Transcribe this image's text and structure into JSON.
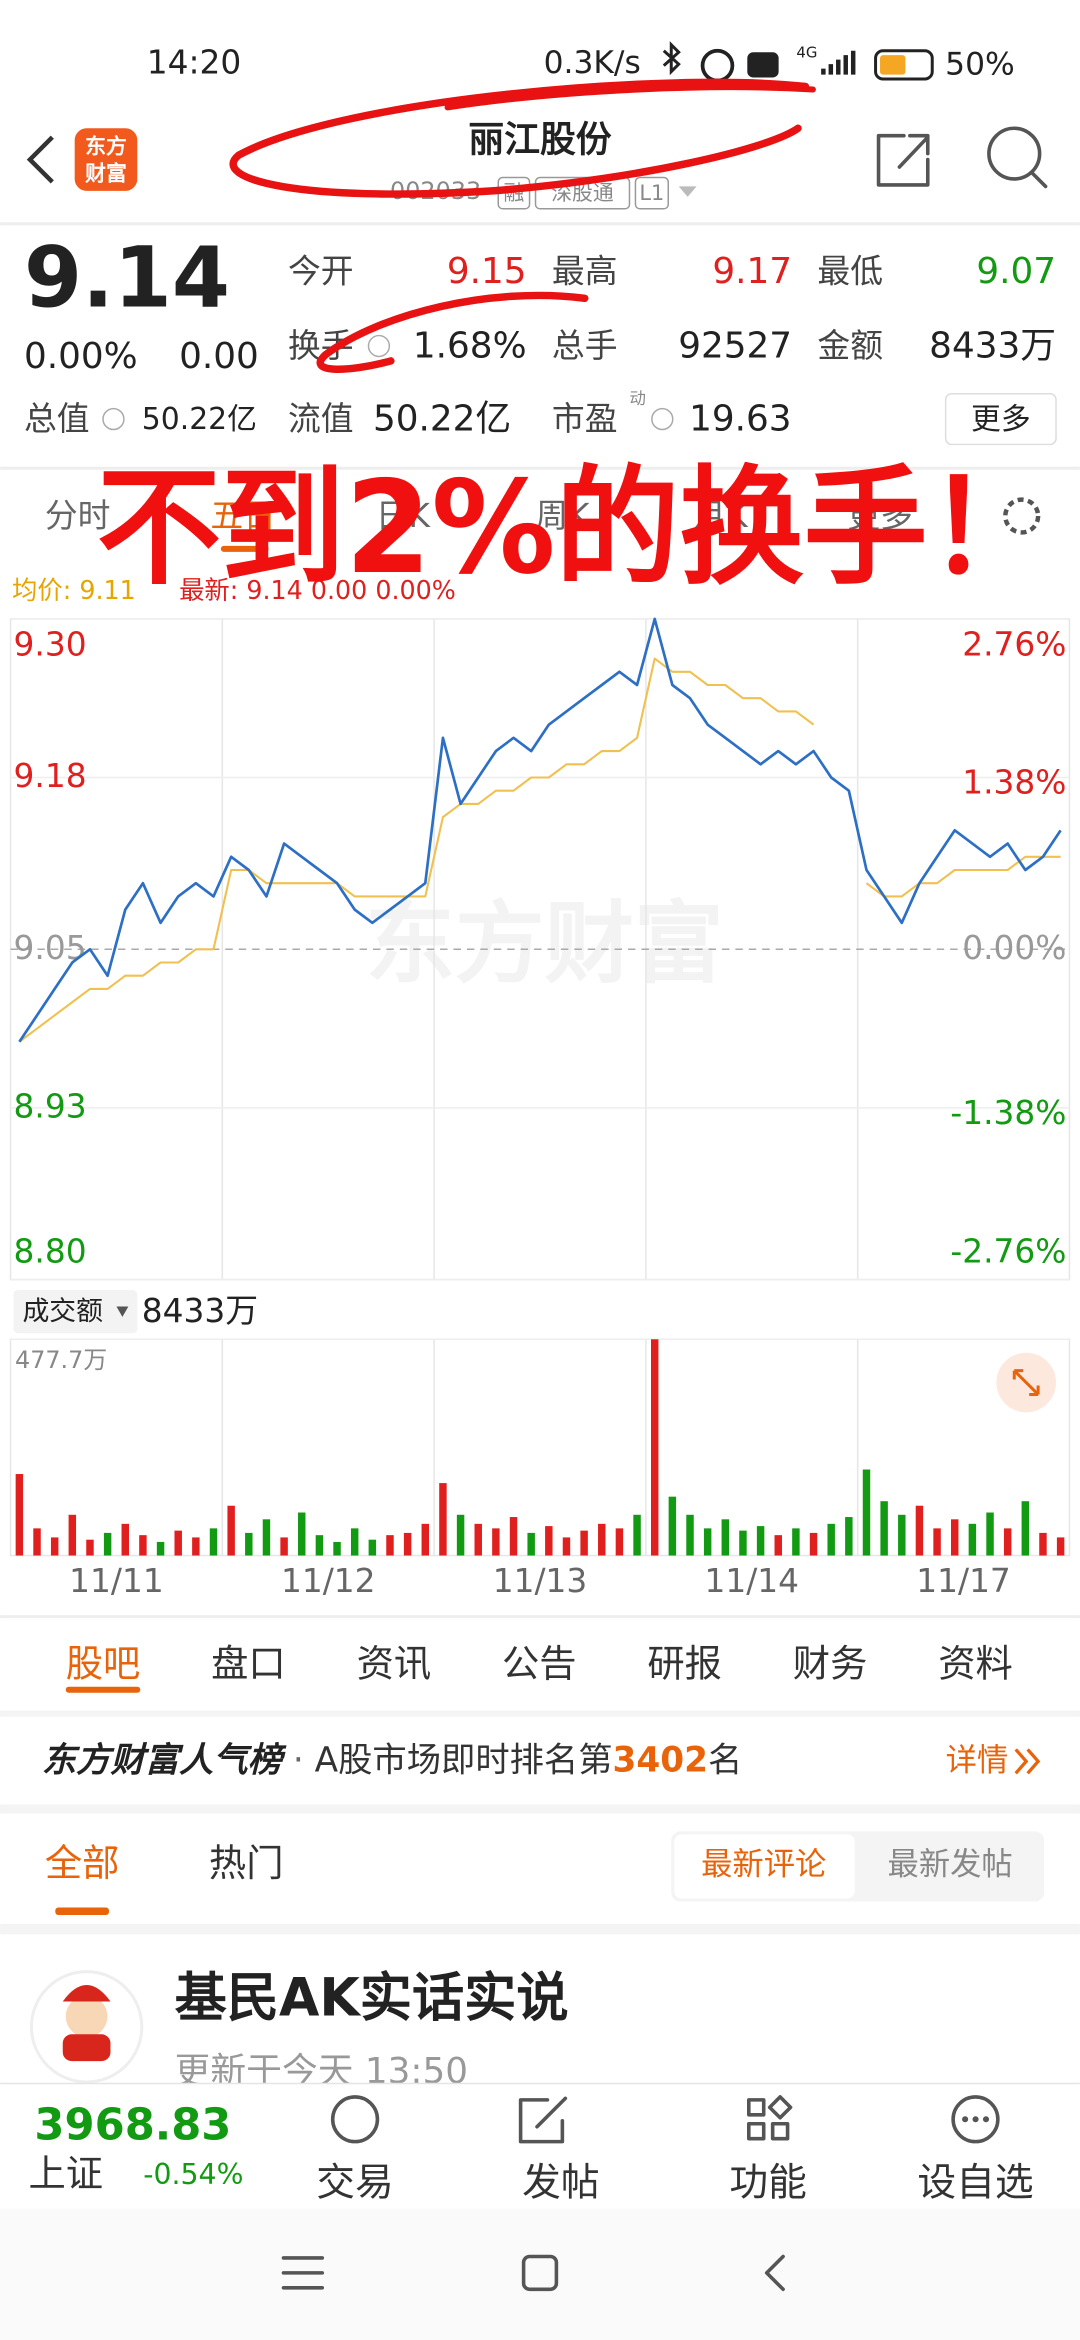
{
  "status_bar": {
    "time": "14:20",
    "network_speed": "0.3K/s",
    "signal": "4G",
    "battery": "50%"
  },
  "header": {
    "logo": [
      "东方",
      "财富"
    ],
    "title": "丽江股份",
    "code": "002033",
    "tags": [
      "融",
      "深股通",
      "L1"
    ]
  },
  "quote": {
    "price": "9.14",
    "change_pct": "0.00%",
    "change": "0.00",
    "open_label": "今开",
    "open": "9.15",
    "high_label": "最高",
    "high": "9.17",
    "low_label": "最低",
    "low": "9.07",
    "turnover_label": "换手",
    "turnover": "1.68%",
    "volume_label": "总手",
    "volume": "92527",
    "amount_label": "金额",
    "amount": "8433万",
    "mcap_label": "总值",
    "mcap": "50.22亿",
    "float_label": "流值",
    "float": "50.22亿",
    "pe_label": "市盈",
    "pe_tag": "动",
    "pe": "19.63",
    "more": "更多"
  },
  "chart_tabs": [
    "分时",
    "五日",
    "日K",
    "周K",
    "月K",
    "更多"
  ],
  "annotation": "不到2%的换手！",
  "chart_legend": {
    "avg": "均价: 9.11",
    "latest": "最新: 9.14  0.00  0.00%"
  },
  "watermark": "东方财富",
  "price_chart": {
    "type": "line",
    "x_labels": [
      "11/11",
      "11/12",
      "11/13",
      "11/14",
      "11/17"
    ],
    "ylim": [
      8.8,
      9.3
    ],
    "yticks": [
      {
        "value": 9.3,
        "label": "9.30"
      },
      9.18,
      9.05,
      8.93,
      {
        "value": 8.8,
        "label": "8.80"
      }
    ],
    "y2lim": [
      -2.76,
      2.76
    ],
    "y2ticks": [
      {
        "value": 2.76,
        "label": "2.76%"
      },
      {
        "value": 1.38,
        "label": "1.38%"
      },
      {
        "value": 0,
        "label": "0.00%"
      },
      {
        "value": -1.38,
        "label": "-1.38%"
      },
      {
        "value": -2.76,
        "label": "-2.76%"
      }
    ],
    "series": [
      {
        "color": "#2d6fc4",
        "values": [
          8.98,
          9.0,
          9.02,
          9.04,
          9.05,
          9.03,
          9.08,
          9.1,
          9.07,
          9.09,
          9.1,
          9.09,
          9.12,
          9.11,
          9.09,
          9.13,
          9.12,
          9.11,
          9.1,
          9.08,
          9.07,
          9.08,
          9.09,
          9.1,
          9.21,
          9.16,
          9.18,
          9.2,
          9.21,
          9.2,
          9.22,
          9.23,
          9.24,
          9.25,
          9.26,
          9.25,
          9.3,
          9.25,
          9.24,
          9.22,
          9.21,
          9.2,
          9.19,
          9.2,
          9.19,
          9.2,
          9.18,
          9.17,
          9.11,
          9.09,
          9.07,
          9.1,
          9.12,
          9.14,
          9.13,
          9.12,
          9.13,
          9.11,
          9.12,
          9.14
        ]
      },
      {
        "color": "#f0c050",
        "values": [
          8.98,
          8.99,
          9.0,
          9.01,
          9.02,
          9.02,
          9.03,
          9.03,
          9.04,
          9.04,
          9.05,
          9.05,
          9.11,
          9.11,
          9.1,
          9.1,
          9.1,
          9.1,
          9.1,
          9.09,
          9.09,
          9.09,
          9.09,
          9.09,
          9.15,
          9.16,
          9.16,
          9.17,
          9.17,
          9.18,
          9.18,
          9.19,
          9.19,
          9.2,
          9.2,
          9.21,
          9.27,
          9.26,
          9.26,
          9.25,
          9.25,
          9.24,
          9.24,
          9.23,
          9.23,
          9.22,
          null,
          null,
          9.1,
          9.09,
          9.09,
          9.1,
          9.1,
          9.11,
          9.11,
          9.11,
          9.11,
          9.12,
          9.12,
          9.12
        ]
      }
    ]
  },
  "volume_chart": {
    "type": "bar",
    "title": "成交额",
    "total": "8433万",
    "ylim": [
      0,
      477.7
    ],
    "yticks": [
      {
        "value": 477.7,
        "label": "477.7万"
      }
    ],
    "values": [
      180,
      60,
      40,
      90,
      35,
      50,
      70,
      45,
      30,
      55,
      40,
      60,
      110,
      50,
      80,
      40,
      95,
      45,
      30,
      60,
      35,
      45,
      50,
      70,
      160,
      90,
      70,
      60,
      85,
      50,
      65,
      40,
      55,
      70,
      60,
      90,
      477.7,
      130,
      90,
      60,
      80,
      55,
      65,
      45,
      60,
      50,
      70,
      85,
      190,
      120,
      90,
      110,
      60,
      80,
      70,
      95,
      60,
      120,
      50,
      40
    ],
    "colors": [
      "#e0201e",
      "#e0201e",
      "#e0201e",
      "#e0201e",
      "#e0201e",
      "#139a13",
      "#e0201e",
      "#e0201e",
      "#139a13",
      "#e0201e",
      "#e0201e",
      "#139a13",
      "#e0201e",
      "#139a13",
      "#139a13",
      "#e0201e",
      "#139a13",
      "#139a13",
      "#139a13",
      "#139a13",
      "#139a13",
      "#e0201e",
      "#e0201e",
      "#e0201e",
      "#e0201e",
      "#139a13",
      "#e0201e",
      "#e0201e",
      "#e0201e",
      "#139a13",
      "#e0201e",
      "#e0201e",
      "#e0201e",
      "#e0201e",
      "#e0201e",
      "#139a13",
      "#e0201e",
      "#139a13",
      "#139a13",
      "#139a13",
      "#139a13",
      "#139a13",
      "#139a13",
      "#e0201e",
      "#139a13",
      "#e0201e",
      "#139a13",
      "#139a13",
      "#139a13",
      "#139a13",
      "#139a13",
      "#e0201e",
      "#e0201e",
      "#e0201e",
      "#139a13",
      "#139a13",
      "#e0201e",
      "#139a13",
      "#e0201e",
      "#e0201e"
    ]
  },
  "section_tabs": [
    "股吧",
    "盘口",
    "资讯",
    "公告",
    "研报",
    "财务",
    "资料"
  ],
  "rank": {
    "title": "东方财富人气榜",
    "dot": "·",
    "prefix": "A股市场即时排名第",
    "rank": "3402",
    "suffix": "名",
    "link": "详情"
  },
  "feed_tabs": [
    "全部",
    "热门"
  ],
  "sort_buttons": [
    "最新评论",
    "最新发帖"
  ],
  "post": {
    "author": "基民AK实话实说",
    "time": "更新于今天 13:50"
  },
  "index": {
    "value": "3968.83",
    "name": "上证",
    "change": "-0.54%"
  },
  "bottom_nav": [
    "交易",
    "发帖",
    "功能",
    "设自选"
  ]
}
